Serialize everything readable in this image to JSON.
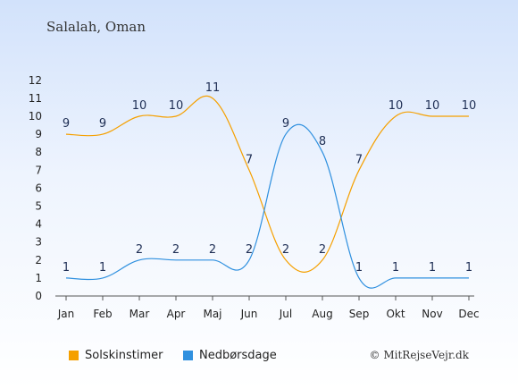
{
  "title": "Salalah, Oman",
  "copyright": "© MitRejseVejr.dk",
  "colors": {
    "sun": "#f5a000",
    "rain": "#2f90df"
  },
  "chart_data": {
    "type": "line",
    "categories": [
      "Jan",
      "Feb",
      "Mar",
      "Apr",
      "Maj",
      "Jun",
      "Jul",
      "Aug",
      "Sep",
      "Okt",
      "Nov",
      "Dec"
    ],
    "ylim": [
      0,
      12
    ],
    "yticks": [
      0,
      1,
      2,
      3,
      4,
      5,
      6,
      7,
      8,
      9,
      10,
      11,
      12
    ],
    "grid": false,
    "legend_position": "bottom-left",
    "series": [
      {
        "name": "Solskinstimer",
        "color": "#f5a000",
        "values": [
          9,
          9,
          10,
          10,
          11,
          7,
          2,
          2,
          7,
          10,
          10,
          10
        ]
      },
      {
        "name": "Nedbørsdage",
        "color": "#2f90df",
        "values": [
          1,
          1,
          2,
          2,
          2,
          2,
          9,
          8,
          1,
          1,
          1,
          1
        ]
      }
    ]
  }
}
